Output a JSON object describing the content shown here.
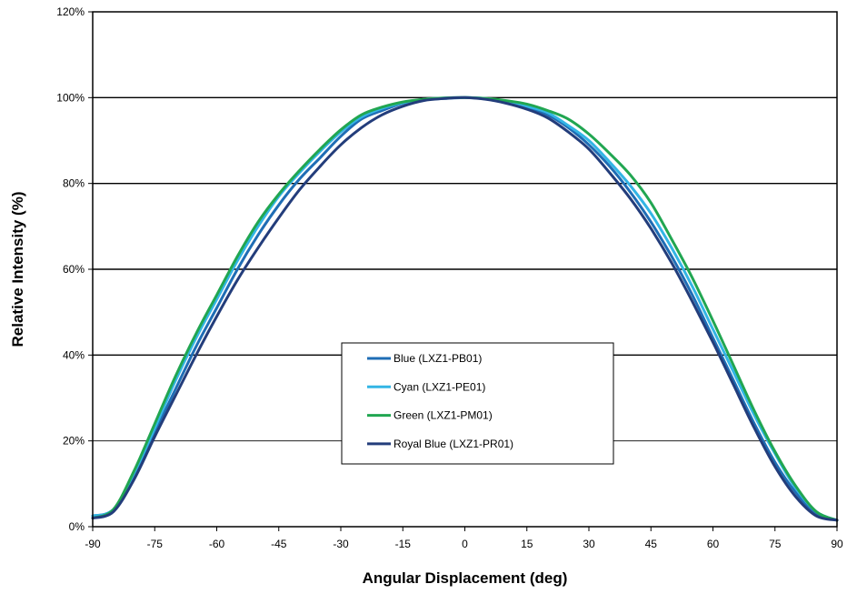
{
  "chart_data": {
    "type": "line",
    "title": "",
    "xlabel": "Angular Displacement (deg)",
    "ylabel": "Relative Intensity (%)",
    "xlim": [
      -90,
      90
    ],
    "ylim": [
      0,
      120
    ],
    "x_ticks": [
      "-90",
      "-75",
      "-60",
      "-45",
      "-30",
      "-15",
      "0",
      "15",
      "30",
      "45",
      "60",
      "75",
      "90"
    ],
    "y_ticks": [
      "0%",
      "20%",
      "40%",
      "60%",
      "80%",
      "100%",
      "120%"
    ],
    "grid": "horizontal",
    "legend_position": "center",
    "x": [
      -90,
      -85,
      -80,
      -75,
      -70,
      -65,
      -60,
      -55,
      -50,
      -45,
      -40,
      -35,
      -30,
      -25,
      -20,
      -15,
      -10,
      -5,
      0,
      5,
      10,
      15,
      20,
      25,
      30,
      35,
      40,
      45,
      50,
      55,
      60,
      65,
      70,
      75,
      80,
      85,
      90
    ],
    "series": [
      {
        "name": "Blue (LXZ1-PB01)",
        "color": "#1f6db5",
        "values": [
          2.5,
          4,
          12,
          22,
          32,
          42,
          51,
          60,
          68,
          75,
          81,
          86,
          91,
          95,
          97,
          98.7,
          99.5,
          99.8,
          100,
          99.7,
          99,
          97.8,
          96,
          93,
          89,
          84,
          78,
          71,
          63,
          54,
          44,
          34,
          24,
          15,
          8,
          3,
          1.5
        ]
      },
      {
        "name": "Cyan (LXZ1-PE01)",
        "color": "#33b5e5",
        "values": [
          2.5,
          4,
          12.5,
          23,
          34,
          44,
          53,
          62,
          70,
          77,
          82.5,
          87.5,
          92,
          95.5,
          97.5,
          98.8,
          99.6,
          99.9,
          100,
          99.8,
          99.2,
          98,
          96.5,
          93.5,
          90,
          85,
          79.5,
          73,
          65,
          56,
          46,
          36,
          26,
          17,
          9,
          3.5,
          1.5
        ]
      },
      {
        "name": "Green (LXZ1-PM01)",
        "color": "#21a651",
        "values": [
          2,
          4,
          13,
          24,
          35,
          45,
          54,
          63,
          71,
          77.5,
          83,
          88,
          92.5,
          96,
          97.8,
          99,
          99.6,
          99.9,
          100,
          99.8,
          99.3,
          98.5,
          97,
          95,
          91.5,
          87,
          82,
          75.5,
          67,
          58,
          48,
          37.5,
          27,
          17.5,
          9.5,
          3.5,
          1.5
        ]
      },
      {
        "name": "Royal Blue (LXZ1-PR01)",
        "color": "#233d7b",
        "values": [
          2,
          3.5,
          11,
          21,
          30.5,
          40,
          49,
          57.5,
          65,
          72,
          78.5,
          84,
          89,
          93,
          96,
          98,
          99.3,
          99.8,
          100,
          99.6,
          98.7,
          97.3,
          95.3,
          92,
          88,
          82.5,
          76.5,
          69.5,
          61.5,
          52.5,
          43,
          33,
          23,
          14,
          7,
          2.5,
          1.5
        ]
      }
    ]
  }
}
